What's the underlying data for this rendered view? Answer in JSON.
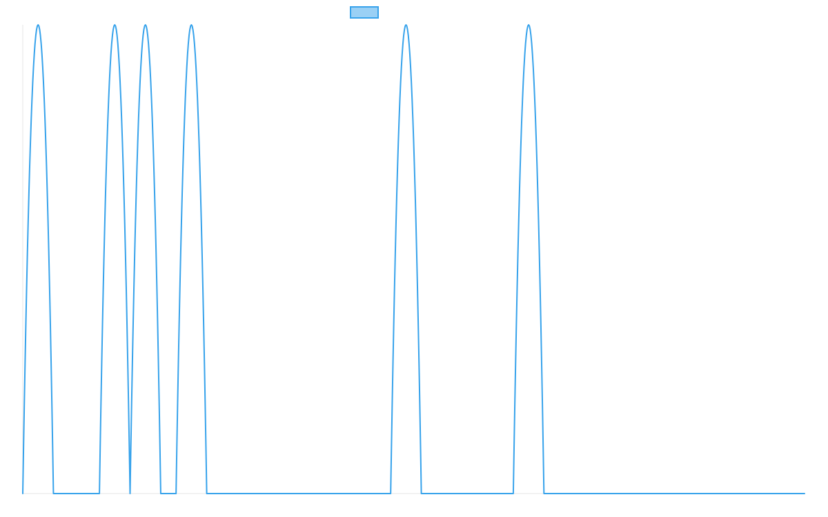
{
  "colors": {
    "line": "#36a2eb",
    "legend_fill": "#9ad0f5",
    "axis": "#e6e6e6"
  },
  "chart_data": {
    "type": "line",
    "title": "",
    "xlabel": "",
    "ylabel": "",
    "grid": false,
    "legend": "top-center",
    "xlim": [
      0,
      255
    ],
    "ylim": [
      0,
      1
    ],
    "series": [
      {
        "values": [
          0,
          1,
          0,
          0,
          0,
          0,
          0,
          1,
          0,
          1,
          0,
          0,
          1,
          0,
          0,
          0,
          0,
          0,
          0,
          0,
          0,
          0,
          0,
          0,
          1,
          0,
          0,
          0,
          0,
          0,
          0,
          0,
          1,
          0,
          0,
          0,
          0,
          0,
          0,
          0,
          0,
          0,
          0,
          0,
          0,
          0,
          0,
          0,
          0,
          0,
          0,
          0
        ],
        "peak_x": [
          5,
          30,
          40,
          55,
          125,
          165
        ],
        "peak_half_width": 5,
        "baseline": 0,
        "peak_value": 1
      }
    ]
  }
}
